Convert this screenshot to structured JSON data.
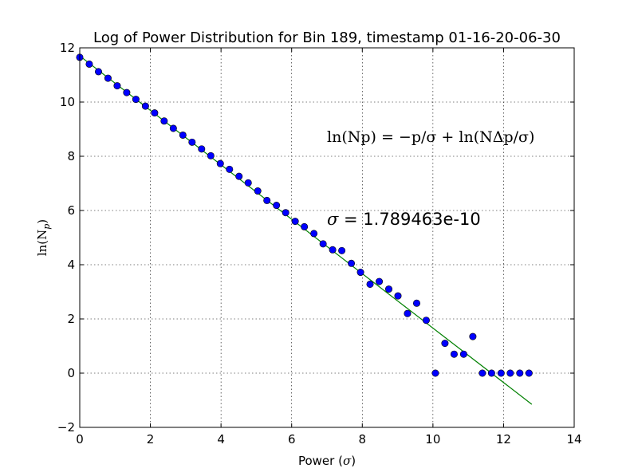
{
  "chart_data": {
    "type": "scatter",
    "title": "Log of Power Distribution for Bin 189, timestamp 01-16-20-06-30",
    "xlabel": "Power ",
    "xlabel_symbol": "σ",
    "ylabel": "ln(N",
    "ylabel_sub": "p",
    "xlim": [
      0,
      14
    ],
    "ylim": [
      -2,
      12
    ],
    "xticks": [
      0,
      2,
      4,
      6,
      8,
      10,
      12,
      14
    ],
    "yticks": [
      -2,
      0,
      2,
      4,
      6,
      8,
      10,
      12
    ],
    "grid": true,
    "annotation_equation": "ln(Np) = −p/σ + ln(NΔp/σ)",
    "annotation_sigma_symbol": "σ",
    "annotation_sigma_value": " = 1.789463e-10",
    "points_color": "#0000ff",
    "fit_color": "#008000",
    "fit_line": {
      "x": [
        0,
        12.8
      ],
      "y": [
        11.7,
        -1.15
      ]
    },
    "series": [
      {
        "x": [
          0.0,
          0.27,
          0.53,
          0.8,
          1.06,
          1.33,
          1.59,
          1.86,
          2.12,
          2.39,
          2.65,
          2.92,
          3.18,
          3.45,
          3.71,
          3.98,
          4.24,
          4.51,
          4.77,
          5.04,
          5.3,
          5.57,
          5.83,
          6.1,
          6.36,
          6.63,
          6.89,
          7.16,
          7.42,
          7.69,
          7.95,
          8.22,
          8.48,
          8.75,
          9.01,
          9.28,
          9.54,
          9.81,
          10.07,
          10.34,
          10.6,
          10.87,
          11.13,
          11.4,
          11.66,
          11.93,
          12.19,
          12.46,
          12.72
        ],
        "y": [
          11.65,
          11.4,
          11.12,
          10.88,
          10.6,
          10.35,
          10.1,
          9.85,
          9.6,
          9.3,
          9.03,
          8.78,
          8.52,
          8.27,
          8.02,
          7.73,
          7.52,
          7.26,
          7.02,
          6.72,
          6.37,
          6.19,
          5.92,
          5.6,
          5.4,
          5.15,
          4.77,
          4.55,
          4.52,
          4.05,
          3.72,
          3.28,
          3.38,
          3.1,
          2.85,
          2.2,
          2.58,
          1.95,
          0.0,
          1.1,
          0.7,
          0.7,
          1.35,
          0.0,
          0.0,
          0.0,
          0.0,
          0.0,
          0.0
        ]
      }
    ]
  }
}
